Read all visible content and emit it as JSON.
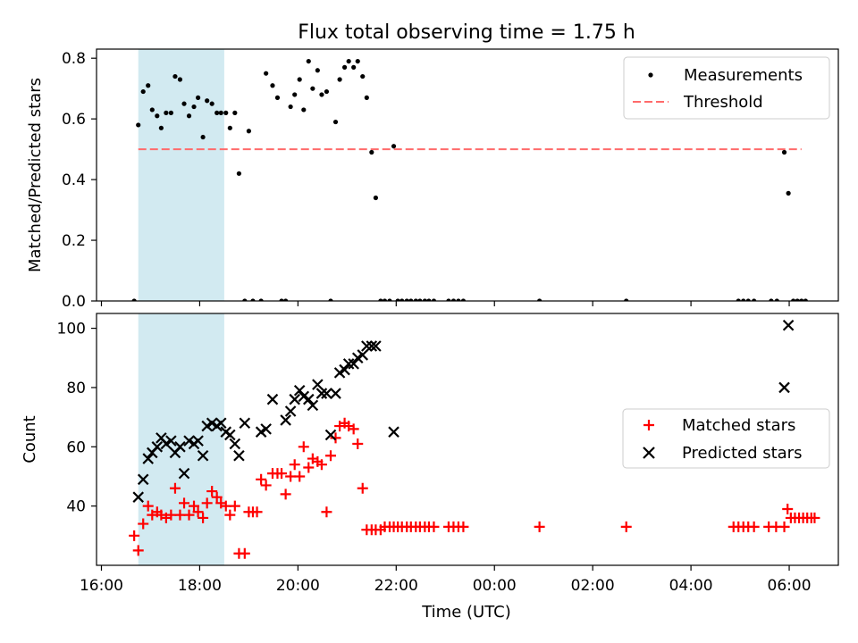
{
  "chart_data": {
    "type": "scatter",
    "title": "Flux total observing time = 1.75 h",
    "shared_xlabel": "Time (UTC)",
    "x_unit": "hours since 16:00 UTC on the first night",
    "x_tick_labels": [
      "16:00",
      "18:00",
      "20:00",
      "22:00",
      "00:00",
      "02:00",
      "04:00",
      "06:00"
    ],
    "shaded_interval": {
      "start": "16:45",
      "end": "18:30",
      "color": "#add8e6"
    },
    "panels": [
      {
        "id": "ratio",
        "ylabel": "Matched/Predicted stars",
        "ylim": [
          0,
          0.83
        ],
        "y_ticks": [
          "0.0",
          "0.2",
          "0.4",
          "0.6",
          "0.8"
        ],
        "legend": {
          "position": "top-right",
          "entries": [
            "Measurements",
            "Threshold"
          ]
        },
        "threshold": {
          "name": "Threshold",
          "value": 0.5,
          "x_range": [
            "16:45",
            "06:15"
          ],
          "color": "#ff6b6b",
          "style": "dashed"
        },
        "series": [
          {
            "name": "Measurements",
            "marker": "dot",
            "color": "#000000",
            "points": [
              [
                "16:40",
                0.0
              ],
              [
                "16:45",
                0.58
              ],
              [
                "16:51",
                0.69
              ],
              [
                "16:57",
                0.71
              ],
              [
                "17:02",
                0.63
              ],
              [
                "17:08",
                0.61
              ],
              [
                "17:13",
                0.57
              ],
              [
                "17:19",
                0.62
              ],
              [
                "17:25",
                0.62
              ],
              [
                "17:30",
                0.74
              ],
              [
                "17:36",
                0.73
              ],
              [
                "17:41",
                0.65
              ],
              [
                "17:47",
                0.61
              ],
              [
                "17:53",
                0.64
              ],
              [
                "17:58",
                0.67
              ],
              [
                "18:04",
                0.54
              ],
              [
                "18:09",
                0.66
              ],
              [
                "18:15",
                0.65
              ],
              [
                "18:21",
                0.62
              ],
              [
                "18:26",
                0.62
              ],
              [
                "18:32",
                0.62
              ],
              [
                "18:37",
                0.57
              ],
              [
                "18:43",
                0.62
              ],
              [
                "18:48",
                0.42
              ],
              [
                "18:55",
                0.0
              ],
              [
                "19:00",
                0.56
              ],
              [
                "19:05",
                0.0
              ],
              [
                "19:15",
                0.0
              ],
              [
                "19:21",
                0.75
              ],
              [
                "19:29",
                0.71
              ],
              [
                "19:35",
                0.67
              ],
              [
                "19:40",
                0.0
              ],
              [
                "19:45",
                0.0
              ],
              [
                "19:51",
                0.64
              ],
              [
                "19:56",
                0.68
              ],
              [
                "20:02",
                0.73
              ],
              [
                "20:07",
                0.63
              ],
              [
                "20:13",
                0.79
              ],
              [
                "20:18",
                0.7
              ],
              [
                "20:24",
                0.76
              ],
              [
                "20:29",
                0.68
              ],
              [
                "20:35",
                0.69
              ],
              [
                "20:40",
                0.0
              ],
              [
                "20:46",
                0.59
              ],
              [
                "20:51",
                0.73
              ],
              [
                "20:57",
                0.77
              ],
              [
                "21:02",
                0.79
              ],
              [
                "21:08",
                0.77
              ],
              [
                "21:13",
                0.79
              ],
              [
                "21:19",
                0.74
              ],
              [
                "21:24",
                0.67
              ],
              [
                "21:30",
                0.49
              ],
              [
                "21:35",
                0.34
              ],
              [
                "21:41",
                0.0
              ],
              [
                "21:46",
                0.0
              ],
              [
                "21:52",
                0.0
              ],
              [
                "21:57",
                0.51
              ],
              [
                "22:02",
                0.0
              ],
              [
                "22:07",
                0.0
              ],
              [
                "22:13",
                0.0
              ],
              [
                "22:18",
                0.0
              ],
              [
                "22:24",
                0.0
              ],
              [
                "22:29",
                0.0
              ],
              [
                "22:35",
                0.0
              ],
              [
                "22:40",
                0.0
              ],
              [
                "22:46",
                0.0
              ],
              [
                "23:04",
                0.0
              ],
              [
                "23:10",
                0.0
              ],
              [
                "23:16",
                0.0
              ],
              [
                "23:22",
                0.0
              ],
              [
                "00:55",
                0.0
              ],
              [
                "02:41",
                0.0
              ],
              [
                "04:58",
                0.0
              ],
              [
                "05:04",
                0.0
              ],
              [
                "05:10",
                0.0
              ],
              [
                "05:17",
                0.0
              ],
              [
                "05:38",
                0.0
              ],
              [
                "05:45",
                0.0
              ],
              [
                "05:54",
                0.49
              ],
              [
                "05:59",
                0.355
              ],
              [
                "06:05",
                0.0
              ],
              [
                "06:10",
                0.0
              ],
              [
                "06:15",
                0.0
              ],
              [
                "06:20",
                0.0
              ]
            ]
          }
        ]
      },
      {
        "id": "counts",
        "ylabel": "Count",
        "ylim": [
          20,
          105
        ],
        "y_ticks": [
          "40",
          "60",
          "80",
          "100"
        ],
        "legend": {
          "position": "center-right",
          "entries": [
            "Matched stars",
            "Predicted stars"
          ]
        },
        "series": [
          {
            "name": "Matched stars",
            "marker": "plus",
            "color": "#ff0000",
            "points": [
              [
                "16:40",
                30
              ],
              [
                "16:45",
                25
              ],
              [
                "16:51",
                34
              ],
              [
                "16:57",
                40
              ],
              [
                "17:02",
                37
              ],
              [
                "17:08",
                38
              ],
              [
                "17:13",
                37
              ],
              [
                "17:19",
                36
              ],
              [
                "17:25",
                37
              ],
              [
                "17:30",
                46
              ],
              [
                "17:36",
                37
              ],
              [
                "17:41",
                41
              ],
              [
                "17:47",
                37
              ],
              [
                "17:53",
                40
              ],
              [
                "17:58",
                38
              ],
              [
                "18:04",
                36
              ],
              [
                "18:09",
                41
              ],
              [
                "18:15",
                45
              ],
              [
                "18:21",
                43
              ],
              [
                "18:26",
                41
              ],
              [
                "18:32",
                40
              ],
              [
                "18:37",
                37
              ],
              [
                "18:43",
                40
              ],
              [
                "18:48",
                24
              ],
              [
                "18:55",
                24
              ],
              [
                "19:00",
                38
              ],
              [
                "19:05",
                38
              ],
              [
                "19:10",
                38
              ],
              [
                "19:15",
                49
              ],
              [
                "19:21",
                47
              ],
              [
                "19:29",
                51
              ],
              [
                "19:35",
                51
              ],
              [
                "19:40",
                51
              ],
              [
                "19:45",
                44
              ],
              [
                "19:51",
                50
              ],
              [
                "19:56",
                54
              ],
              [
                "20:02",
                50
              ],
              [
                "20:07",
                60
              ],
              [
                "20:13",
                53
              ],
              [
                "20:18",
                56
              ],
              [
                "20:24",
                55
              ],
              [
                "20:29",
                54
              ],
              [
                "20:35",
                38
              ],
              [
                "20:40",
                57
              ],
              [
                "20:46",
                63
              ],
              [
                "20:51",
                67
              ],
              [
                "20:57",
                68
              ],
              [
                "21:02",
                67
              ],
              [
                "21:08",
                66
              ],
              [
                "21:13",
                61
              ],
              [
                "21:19",
                46
              ],
              [
                "21:24",
                32
              ],
              [
                "21:30",
                32
              ],
              [
                "21:35",
                32
              ],
              [
                "21:41",
                32
              ],
              [
                "21:46",
                33
              ],
              [
                "21:52",
                33
              ],
              [
                "21:57",
                33
              ],
              [
                "22:02",
                33
              ],
              [
                "22:07",
                33
              ],
              [
                "22:13",
                33
              ],
              [
                "22:18",
                33
              ],
              [
                "22:24",
                33
              ],
              [
                "22:29",
                33
              ],
              [
                "22:35",
                33
              ],
              [
                "22:40",
                33
              ],
              [
                "22:46",
                33
              ],
              [
                "23:04",
                33
              ],
              [
                "23:10",
                33
              ],
              [
                "23:16",
                33
              ],
              [
                "23:22",
                33
              ],
              [
                "00:55",
                33
              ],
              [
                "02:41",
                33
              ],
              [
                "04:52",
                33
              ],
              [
                "04:58",
                33
              ],
              [
                "05:04",
                33
              ],
              [
                "05:10",
                33
              ],
              [
                "05:17",
                33
              ],
              [
                "05:35",
                33
              ],
              [
                "05:44",
                33
              ],
              [
                "05:54",
                33
              ],
              [
                "05:58",
                39
              ],
              [
                "06:02",
                36
              ],
              [
                "06:07",
                36
              ],
              [
                "06:12",
                36
              ],
              [
                "06:17",
                36
              ],
              [
                "06:22",
                36
              ],
              [
                "06:27",
                36
              ],
              [
                "06:31",
                36
              ]
            ]
          },
          {
            "name": "Predicted stars",
            "marker": "x",
            "color": "#000000",
            "points": [
              [
                "16:45",
                43
              ],
              [
                "16:51",
                49
              ],
              [
                "16:57",
                56
              ],
              [
                "17:02",
                58
              ],
              [
                "17:08",
                60
              ],
              [
                "17:13",
                63
              ],
              [
                "17:19",
                61
              ],
              [
                "17:25",
                62
              ],
              [
                "17:30",
                58
              ],
              [
                "17:36",
                60
              ],
              [
                "17:41",
                51
              ],
              [
                "17:47",
                62
              ],
              [
                "17:53",
                61
              ],
              [
                "17:58",
                62
              ],
              [
                "18:04",
                57
              ],
              [
                "18:09",
                67
              ],
              [
                "18:15",
                68
              ],
              [
                "18:21",
                67
              ],
              [
                "18:26",
                68
              ],
              [
                "18:32",
                65
              ],
              [
                "18:37",
                64
              ],
              [
                "18:43",
                61
              ],
              [
                "18:48",
                57
              ],
              [
                "18:55",
                68
              ],
              [
                "19:15",
                65
              ],
              [
                "19:21",
                66
              ],
              [
                "19:29",
                76
              ],
              [
                "19:45",
                69
              ],
              [
                "19:51",
                72
              ],
              [
                "19:56",
                76
              ],
              [
                "20:02",
                79
              ],
              [
                "20:07",
                77
              ],
              [
                "20:13",
                76
              ],
              [
                "20:18",
                74
              ],
              [
                "20:24",
                81
              ],
              [
                "20:29",
                78
              ],
              [
                "20:35",
                78
              ],
              [
                "20:40",
                64
              ],
              [
                "20:46",
                78
              ],
              [
                "20:51",
                85
              ],
              [
                "20:57",
                86
              ],
              [
                "21:02",
                88
              ],
              [
                "21:08",
                88
              ],
              [
                "21:13",
                90
              ],
              [
                "21:19",
                91
              ],
              [
                "21:24",
                94
              ],
              [
                "21:30",
                94
              ],
              [
                "21:35",
                94
              ],
              [
                "21:57",
                65
              ],
              [
                "05:54",
                80
              ],
              [
                "05:59",
                101
              ]
            ]
          }
        ]
      }
    ]
  }
}
